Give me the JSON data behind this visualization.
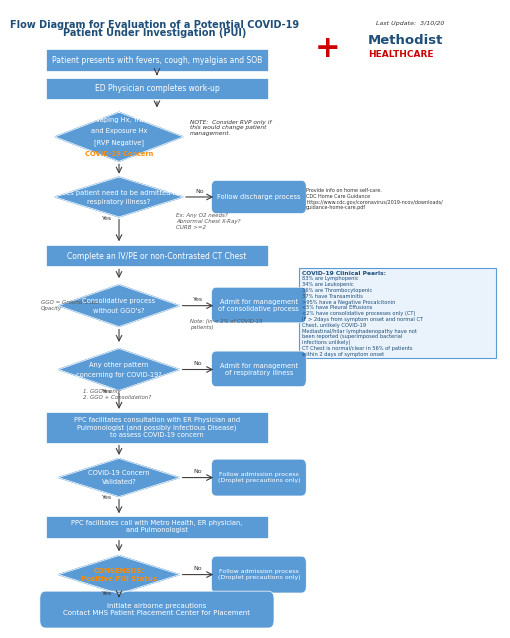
{
  "title_line1": "Flow Diagram for Evaluation of a Potential COVID-19",
  "title_line2": "Patient Under Investigation (PUI)",
  "last_update": "Last Update:  3/10/20",
  "title_color": "#1F4E79",
  "bg_color": "#FFFFFF",
  "box_fill": "#5B9BD5",
  "box_text_color": "#FFFFFF",
  "diamond_fill": "#5B9BD5",
  "arrow_color": "#404040",
  "note_border": "#5B9BD5",
  "note_bg": "#EAF3FB",
  "orange_text_color": "#FF8C00",
  "covid_note_text": "NOTE:  Consider RVP only if\nthis would change patient\nmanagement.",
  "discharge_note_text": "Provide info on home self-care.\nCDC Home Care Guidance\nhttps://www.cdc.gov/coronavirus/2019-ncov/downloads/\nguidance-home-care.pdf",
  "ggo_note_text": "GGO = Ground Glass\nOpacity",
  "note2_text": "Note: (in < 2% of COVID-19\npatients)",
  "ex_text": "Ex: Any O2 needs?\nAbnormal Chest X-Ray?\nCURB >=2",
  "pattern_note_text": "1. GGO's only\n2. GGO + Consolidation?",
  "clinical_pearls_title": "COVID-19 Clinical Pearls:",
  "clinical_pearls_text": "83% are Lymphopenic\n34% are Leukopenic\n36% are Thrombocytopenic\n37% have Transaminitis\n>95% have a Negative Procalcitonin\n<5% have Pleural Effusions\n<2% have consolidative processes only (CT)\nIF > 2days from symptom onset and normal CT\nChest, unlikely COVID-19\nMediastinal/hilar lymphadenopathy have not\nbeen reported (superimposed bacterial\ninfections unlikely)\nCT Chest is normal/clear in 56% of patients\nwithin 2 days of symptom onset"
}
